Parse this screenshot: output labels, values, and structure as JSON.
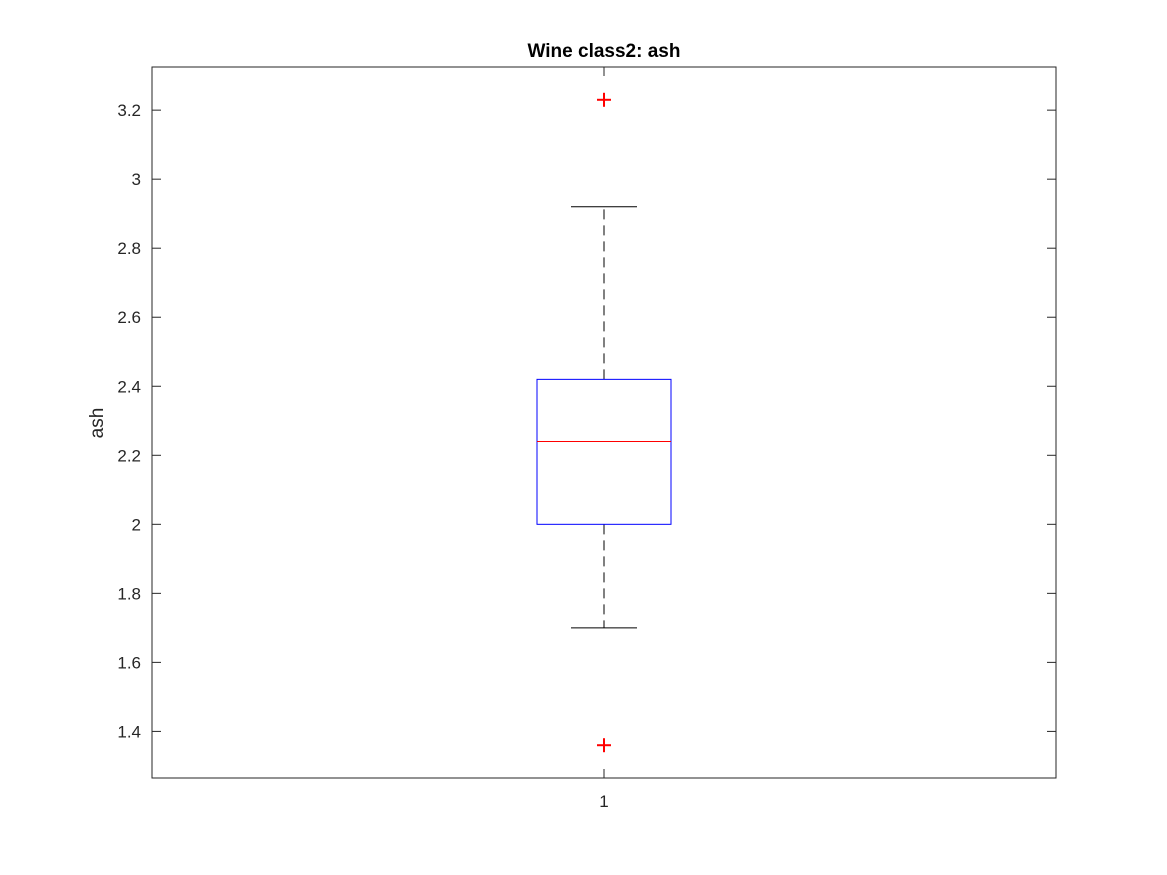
{
  "chart_data": {
    "type": "boxplot",
    "title": "Wine class2: ash",
    "xlabel": "",
    "ylabel": "ash",
    "categories": [
      "1"
    ],
    "ylim": [
      1.265,
      3.325
    ],
    "yticks": [
      "1.4",
      "1.6",
      "1.8",
      "2",
      "2.2",
      "2.4",
      "2.6",
      "2.8",
      "3",
      "3.2"
    ],
    "grid": false,
    "boxes": [
      {
        "category": "1",
        "q1": 2.0,
        "median": 2.24,
        "q3": 2.42,
        "whisker_low": 1.7,
        "whisker_high": 2.92,
        "outliers": [
          3.23,
          1.36
        ]
      }
    ],
    "colors": {
      "box": "#0000ff",
      "median": "#ff0000",
      "whisker": "#000000",
      "outlier": "#ff0000",
      "axes": "#262626"
    }
  }
}
